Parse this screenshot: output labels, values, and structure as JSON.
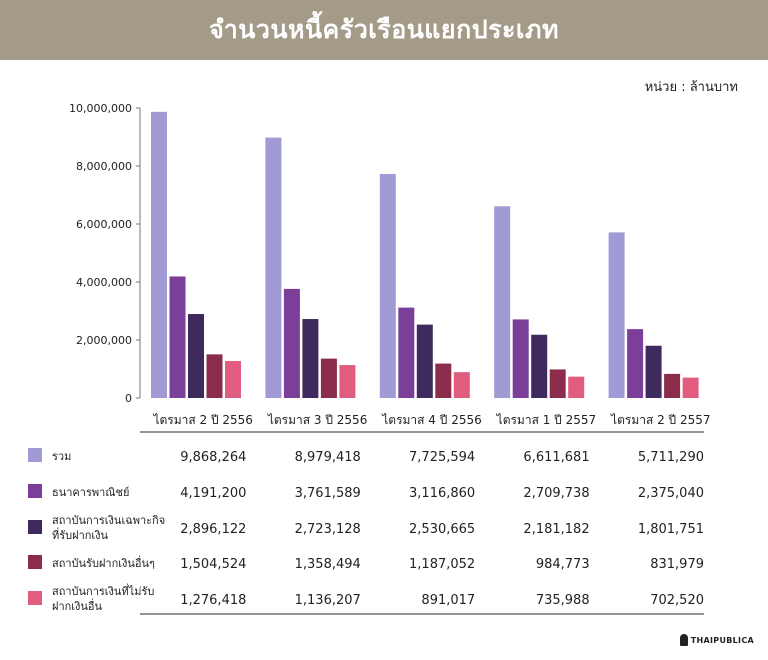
{
  "header": {
    "title": "จำนวนหนี้ครัวเรือนแยกประเภท"
  },
  "unit_label": "หน่วย : ล้านบาท",
  "logo": {
    "text": "THAIPUBLICA"
  },
  "chart_data": {
    "type": "bar",
    "title": "จำนวนหนี้ครัวเรือนแยกประเภท",
    "ylabel": "หน่วย : ล้านบาท",
    "ylim": [
      0,
      10000000
    ],
    "yticks": [
      0,
      2000000,
      4000000,
      6000000,
      8000000,
      10000000
    ],
    "ytick_labels": [
      "0",
      "2,000,000",
      "4,000,000",
      "6,000,000",
      "8,000,000",
      "10,000,000"
    ],
    "grid": false,
    "legend": "table-below",
    "categories": [
      "ไตรมาส 2 ปี 2556",
      "ไตรมาส 3 ปี 2556",
      "ไตรมาส 4 ปี 2556",
      "ไตรมาส 1 ปี 2557",
      "ไตรมาส 2 ปี 2557"
    ],
    "series": [
      {
        "name": "รวม",
        "name_lines": [
          "รวม"
        ],
        "color": "#a09bd5",
        "values": [
          9868264,
          8979418,
          7725594,
          6611681,
          5711290
        ],
        "labels": [
          "9,868,264",
          "8,979,418",
          "7,725,594",
          "6,611,681",
          "5,711,290"
        ]
      },
      {
        "name": "ธนาคารพาณิชย์",
        "name_lines": [
          "ธนาคารพาณิชย์"
        ],
        "color": "#7b3f9a",
        "values": [
          4191200,
          3761589,
          3116860,
          2709738,
          2375040
        ],
        "labels": [
          "4,191,200",
          "3,761,589",
          "3,116,860",
          "2,709,738",
          "2,375,040"
        ]
      },
      {
        "name": "สถาบันการเงินเฉพาะกิจที่รับฝากเงิน",
        "name_lines": [
          "สถาบันการเงินเฉพาะกิจ",
          "ที่รับฝากเงิน"
        ],
        "color": "#3e2a5c",
        "values": [
          2896122,
          2723128,
          2530665,
          2181182,
          1801751
        ],
        "labels": [
          "2,896,122",
          "2,723,128",
          "2,530,665",
          "2,181,182",
          "1,801,751"
        ]
      },
      {
        "name": "สถาบันรับฝากเงินอื่นๆ",
        "name_lines": [
          "สถาบันรับฝากเงินอื่นๆ"
        ],
        "color": "#8c2c4b",
        "values": [
          1504524,
          1358494,
          1187052,
          984773,
          831979
        ],
        "labels": [
          "1,504,524",
          "1,358,494",
          "1,187,052",
          "984,773",
          "831,979"
        ]
      },
      {
        "name": "สถาบันการเงินที่ไม่รับฝากเงินอื่น",
        "name_lines": [
          "สถาบันการเงินที่ไม่รับ",
          "ฝากเงินอื่น"
        ],
        "color": "#e05d7f",
        "values": [
          1276418,
          1136207,
          891017,
          735988,
          702520
        ],
        "labels": [
          "1,276,418",
          "1,136,207",
          "891,017",
          "735,988",
          "702,520"
        ]
      }
    ]
  }
}
